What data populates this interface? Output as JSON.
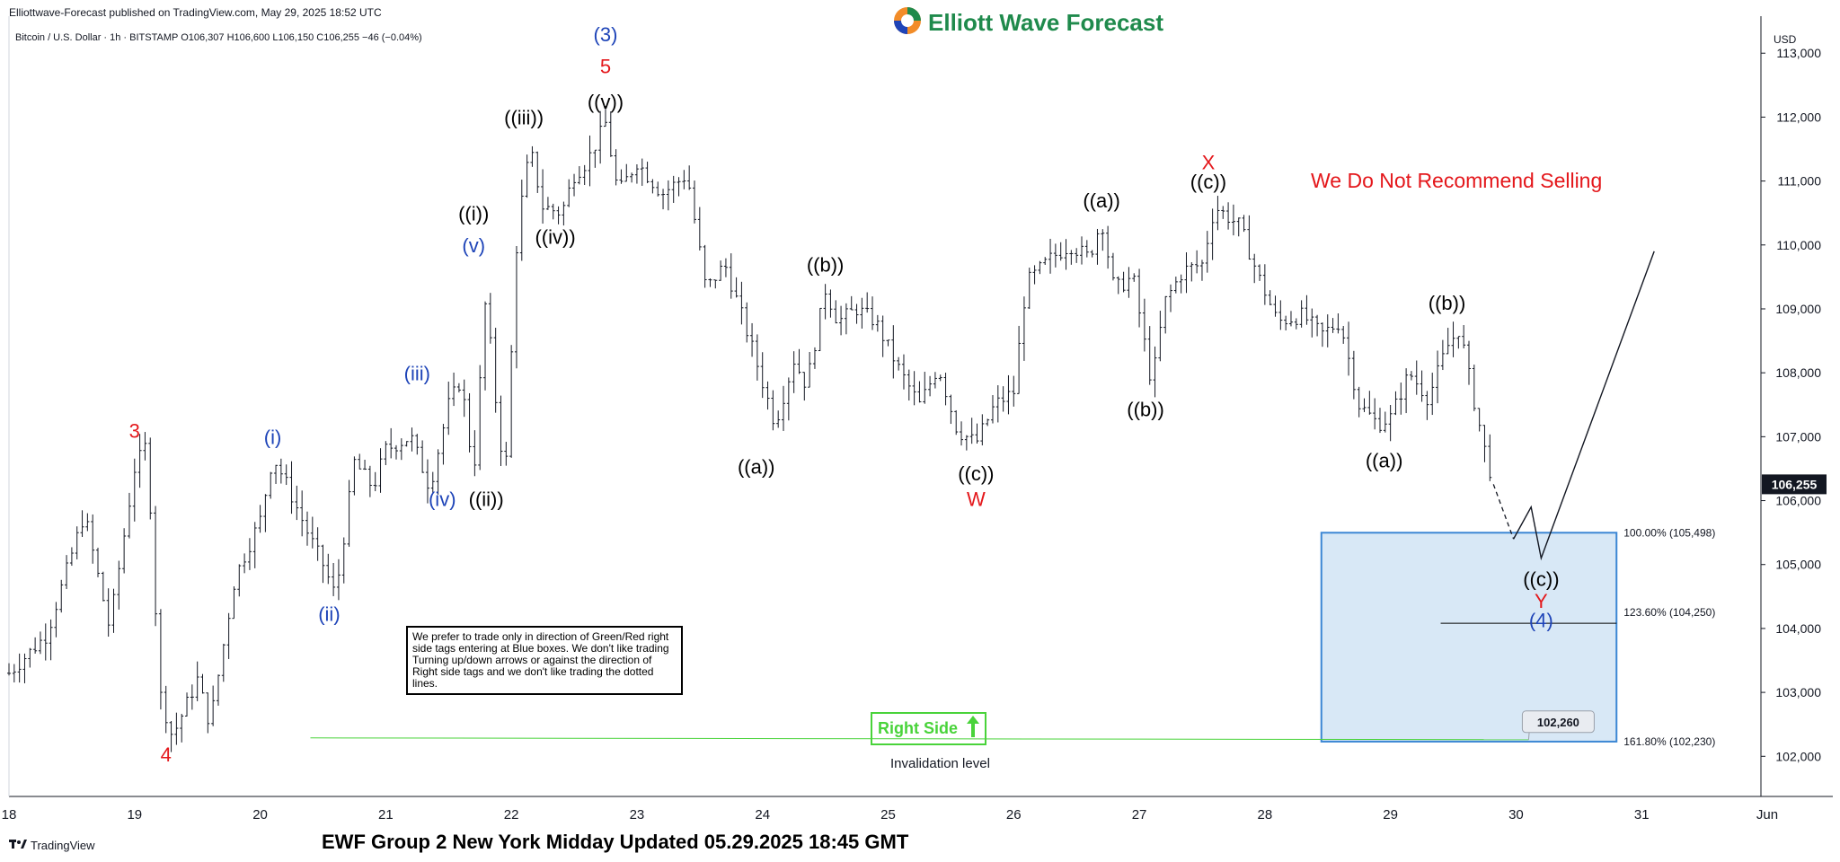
{
  "header": {
    "published": "Elliottwave-Forecast published on TradingView.com, May 29, 2025 18:52 UTC",
    "symbol_line": "Bitcoin / U.S. Dollar · 1h · BITSTAMP  O106,307  H106,600  L106,150  C106,255  −46 (−0.04%)"
  },
  "brand": {
    "logo_text": "Elliott Wave Forecast"
  },
  "annotations": {
    "warning": "We Do Not Recommend Selling",
    "note": "We prefer to trade only in direction of Green/Red right side tags entering at Blue boxes. We don't like trading Turning up/down arrows or against the direction of Right side tags and we don't like trading the dotted lines.",
    "right_side": "Right Side",
    "invalidation": "Invalidation level",
    "price_tag": "102,260",
    "current_price": "106,255"
  },
  "footer": {
    "title": "EWF Group 2 New York Midday Updated 05.29.2025 18:45 GMT",
    "tv_logo": "TradingView"
  },
  "colors": {
    "wave_red": "#e4171b",
    "wave_blue": "#1e44b8",
    "wave_black": "#000000",
    "box_fill": "#d8e8f6",
    "box_stroke": "#3c87d4",
    "right_side_green": "#49d33a"
  },
  "chart_data": {
    "type": "candlestick",
    "y_axis": {
      "unit": "USD",
      "ticks": [
        "113,000",
        "112,000",
        "111,000",
        "110,000",
        "109,000",
        "108,000",
        "107,000",
        "106,000",
        "105,000",
        "104,000",
        "103,000",
        "102,000"
      ],
      "range": [
        101400,
        113200
      ],
      "position": "right"
    },
    "x_axis": {
      "ticks": [
        "18",
        "19",
        "20",
        "21",
        "22",
        "23",
        "24",
        "25",
        "26",
        "27",
        "28",
        "29",
        "30",
        "31",
        "Jun"
      ],
      "range_days": [
        18.0,
        31.95
      ]
    },
    "price_path": [
      [
        18.0,
        103300
      ],
      [
        18.3,
        103900
      ],
      [
        18.6,
        105800
      ],
      [
        18.8,
        104000
      ],
      [
        19.0,
        106500
      ],
      [
        19.1,
        106900
      ],
      [
        19.2,
        103000
      ],
      [
        19.3,
        102300
      ],
      [
        19.5,
        103200
      ],
      [
        19.6,
        102500
      ],
      [
        19.8,
        104800
      ],
      [
        20.0,
        105700
      ],
      [
        20.1,
        106700
      ],
      [
        20.2,
        106300
      ],
      [
        20.4,
        105400
      ],
      [
        20.5,
        105000
      ],
      [
        20.6,
        104500
      ],
      [
        20.75,
        106600
      ],
      [
        20.9,
        106200
      ],
      [
        21.0,
        106800
      ],
      [
        21.2,
        107000
      ],
      [
        21.35,
        106200
      ],
      [
        21.5,
        107500
      ],
      [
        21.6,
        107900
      ],
      [
        21.7,
        106400
      ],
      [
        21.8,
        109300
      ],
      [
        21.85,
        108000
      ],
      [
        21.95,
        106300
      ],
      [
        22.05,
        110300
      ],
      [
        22.15,
        111500
      ],
      [
        22.25,
        110600
      ],
      [
        22.4,
        110500
      ],
      [
        22.5,
        111100
      ],
      [
        22.6,
        111300
      ],
      [
        22.75,
        111900
      ],
      [
        22.85,
        110800
      ],
      [
        23.0,
        111300
      ],
      [
        23.2,
        110800
      ],
      [
        23.4,
        111100
      ],
      [
        23.55,
        109300
      ],
      [
        23.7,
        109700
      ],
      [
        23.9,
        108500
      ],
      [
        24.1,
        107200
      ],
      [
        24.25,
        108200
      ],
      [
        24.35,
        107800
      ],
      [
        24.5,
        109300
      ],
      [
        24.6,
        108800
      ],
      [
        24.75,
        109000
      ],
      [
        24.9,
        108800
      ],
      [
        25.1,
        108000
      ],
      [
        25.25,
        107500
      ],
      [
        25.4,
        108100
      ],
      [
        25.55,
        107100
      ],
      [
        25.7,
        106900
      ],
      [
        25.85,
        107500
      ],
      [
        26.0,
        107700
      ],
      [
        26.1,
        109400
      ],
      [
        26.3,
        109800
      ],
      [
        26.45,
        110000
      ],
      [
        26.6,
        109800
      ],
      [
        26.7,
        110400
      ],
      [
        26.8,
        109300
      ],
      [
        26.95,
        109500
      ],
      [
        27.1,
        107800
      ],
      [
        27.2,
        109100
      ],
      [
        27.35,
        109600
      ],
      [
        27.5,
        109700
      ],
      [
        27.6,
        110600
      ],
      [
        27.8,
        110300
      ],
      [
        27.95,
        109500
      ],
      [
        28.1,
        108800
      ],
      [
        28.3,
        108900
      ],
      [
        28.45,
        108600
      ],
      [
        28.6,
        108800
      ],
      [
        28.75,
        107500
      ],
      [
        28.9,
        107200
      ],
      [
        29.0,
        107300
      ],
      [
        29.15,
        108000
      ],
      [
        29.3,
        107600
      ],
      [
        29.45,
        108400
      ],
      [
        29.55,
        108700
      ],
      [
        29.65,
        107700
      ],
      [
        29.75,
        106800
      ],
      [
        29.82,
        106255
      ]
    ],
    "projection": [
      [
        29.9,
        105900
      ],
      [
        29.98,
        105400
      ],
      [
        30.12,
        105900
      ],
      [
        30.2,
        105100
      ],
      [
        31.1,
        109900
      ]
    ],
    "wave_labels": [
      {
        "text": "3",
        "x": 19.0,
        "y": 106900,
        "color": "red",
        "pos": "above"
      },
      {
        "text": "4",
        "x": 19.25,
        "y": 102200,
        "color": "red",
        "pos": "below"
      },
      {
        "text": "(i)",
        "x": 20.1,
        "y": 106800,
        "color": "blue",
        "pos": "above"
      },
      {
        "text": "(ii)",
        "x": 20.55,
        "y": 104400,
        "color": "blue",
        "pos": "below"
      },
      {
        "text": "(iii)",
        "x": 21.25,
        "y": 107800,
        "color": "blue",
        "pos": "above"
      },
      {
        "text": "(iv)",
        "x": 21.45,
        "y": 106200,
        "color": "blue",
        "pos": "below"
      },
      {
        "text": "(v)",
        "x": 21.7,
        "y": 109800,
        "color": "blue",
        "pos": "above"
      },
      {
        "text": "((i))",
        "x": 21.7,
        "y": 110300,
        "color": "black",
        "pos": "above"
      },
      {
        "text": "((ii))",
        "x": 21.8,
        "y": 106200,
        "color": "black",
        "pos": "below"
      },
      {
        "text": "((iii))",
        "x": 22.1,
        "y": 111800,
        "color": "black",
        "pos": "above"
      },
      {
        "text": "((iv))",
        "x": 22.35,
        "y": 110300,
        "color": "black",
        "pos": "below"
      },
      {
        "text": "((v))",
        "x": 22.75,
        "y": 112050,
        "color": "black",
        "pos": "above"
      },
      {
        "text": "5",
        "x": 22.75,
        "y": 112600,
        "color": "red",
        "pos": "above"
      },
      {
        "text": "(3)",
        "x": 22.75,
        "y": 113100,
        "color": "blue",
        "pos": "above"
      },
      {
        "text": "((a))",
        "x": 23.95,
        "y": 106700,
        "color": "black",
        "pos": "below"
      },
      {
        "text": "((b))",
        "x": 24.5,
        "y": 109500,
        "color": "black",
        "pos": "above"
      },
      {
        "text": "((c))",
        "x": 25.7,
        "y": 106600,
        "color": "black",
        "pos": "below"
      },
      {
        "text": "W",
        "x": 25.7,
        "y": 106200,
        "color": "red",
        "pos": "below"
      },
      {
        "text": "((a))",
        "x": 26.7,
        "y": 110500,
        "color": "black",
        "pos": "above"
      },
      {
        "text": "((b))",
        "x": 27.05,
        "y": 107600,
        "color": "black",
        "pos": "below"
      },
      {
        "text": "((c))",
        "x": 27.55,
        "y": 110800,
        "color": "black",
        "pos": "above"
      },
      {
        "text": "X",
        "x": 27.55,
        "y": 111100,
        "color": "red",
        "pos": "above"
      },
      {
        "text": "((a))",
        "x": 28.95,
        "y": 106800,
        "color": "black",
        "pos": "below"
      },
      {
        "text": "((b))",
        "x": 29.45,
        "y": 108900,
        "color": "black",
        "pos": "above"
      },
      {
        "text": "((c))",
        "x": 30.2,
        "y": 104950,
        "color": "black",
        "pos": "below"
      },
      {
        "text": "Y",
        "x": 30.2,
        "y": 104600,
        "color": "red",
        "pos": "below"
      },
      {
        "text": "(4)",
        "x": 30.2,
        "y": 104300,
        "color": "blue",
        "pos": "below"
      }
    ],
    "blue_box": {
      "x_start": 28.45,
      "x_end": 30.8,
      "y_top": 105498,
      "y_bottom": 102230
    },
    "fib_levels": [
      {
        "label": "100.00% (105,498)",
        "value": 105498
      },
      {
        "label": "123.60% (104,250)",
        "value": 104250
      },
      {
        "label": "161.80% (102,230)",
        "value": 102230
      }
    ],
    "invalidation_value": 102260,
    "current_price_value": 106255
  }
}
